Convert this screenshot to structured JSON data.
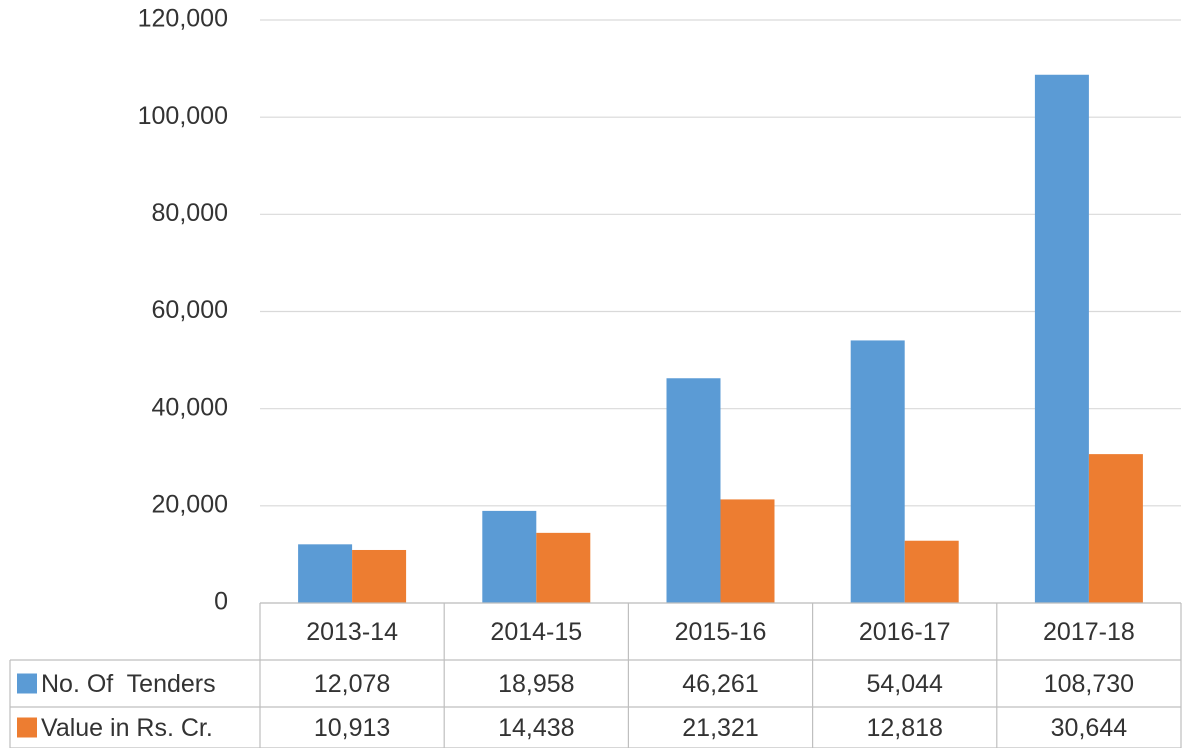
{
  "chart_data": {
    "type": "bar",
    "categories": [
      "2013-14",
      "2014-15",
      "2015-16",
      "2016-17",
      "2017-18"
    ],
    "series": [
      {
        "name": "No. Of  Tenders",
        "color": "#5b9bd5",
        "values": [
          12078,
          18958,
          46261,
          54044,
          108730
        ],
        "value_labels": [
          "12,078",
          "18,958",
          "46,261",
          "54,044",
          "108,730"
        ]
      },
      {
        "name": "Value in Rs. Cr.",
        "color": "#ed7d31",
        "values": [
          10913,
          14438,
          21321,
          12818,
          30644
        ],
        "value_labels": [
          "10,913",
          "14,438",
          "21,321",
          "12,818",
          "30,644"
        ]
      }
    ],
    "ylim": [
      0,
      120000
    ],
    "yticks": [
      0,
      {
        "value": 20000,
        "label": "20,000"
      },
      {
        "value": 40000,
        "label": "40,000"
      },
      {
        "value": 60000,
        "label": "60,000"
      },
      {
        "value": 80000,
        "label": "80,000"
      },
      {
        "value": 100000,
        "label": "100,000"
      },
      {
        "value": 120000,
        "label": "120,000"
      }
    ],
    "grid": true
  }
}
